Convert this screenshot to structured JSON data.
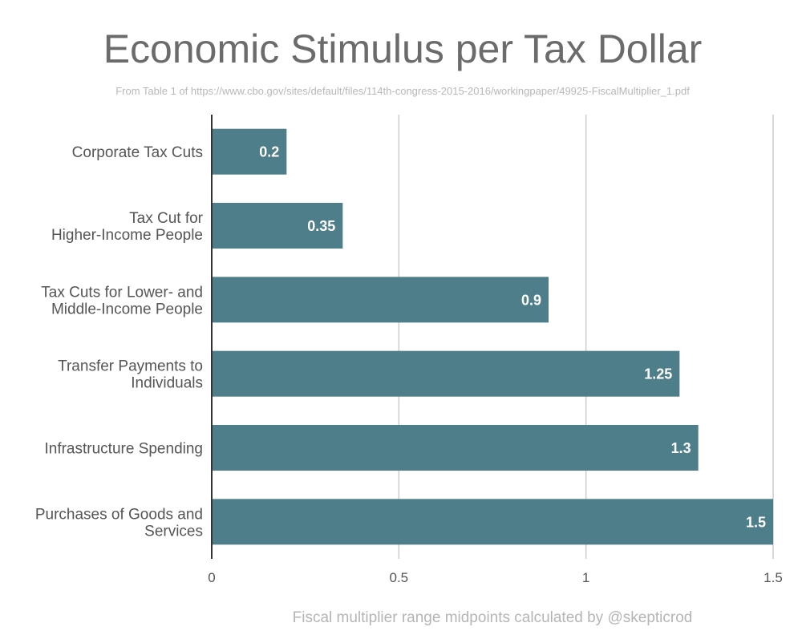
{
  "chart_data": {
    "type": "bar",
    "orientation": "horizontal",
    "title": "Economic Stimulus per Tax Dollar",
    "subtitle": "From Table 1 of https://www.cbo.gov/sites/default/files/114th-congress-2015-2016/workingpaper/49925-FiscalMultiplier_1.pdf",
    "footer": "Fiscal multiplier range midpoints calculated by @skepticrod",
    "categories": [
      [
        "Corporate Tax Cuts"
      ],
      [
        "Tax Cut for",
        "Higher-Income People"
      ],
      [
        "Tax Cuts for Lower- and",
        "Middle-Income People"
      ],
      [
        "Transfer Payments to",
        "Individuals"
      ],
      [
        "Infrastructure Spending"
      ],
      [
        "Purchases of Goods and",
        "Services"
      ]
    ],
    "values": [
      0.2,
      0.35,
      0.9,
      1.25,
      1.3,
      1.5
    ],
    "value_labels": [
      "0.2",
      "0.35",
      "0.9",
      "1.25",
      "1.3",
      "1.5"
    ],
    "xlim": [
      0,
      1.5
    ],
    "x_ticks": [
      0,
      0.5,
      1,
      1.5
    ],
    "x_tick_labels": [
      "0",
      "0.5",
      "1",
      "1.5"
    ],
    "grid": true,
    "legend": "none",
    "colors": {
      "bar": "#4e7e8a",
      "grid": "#cccccc",
      "axis": "#333333"
    }
  }
}
